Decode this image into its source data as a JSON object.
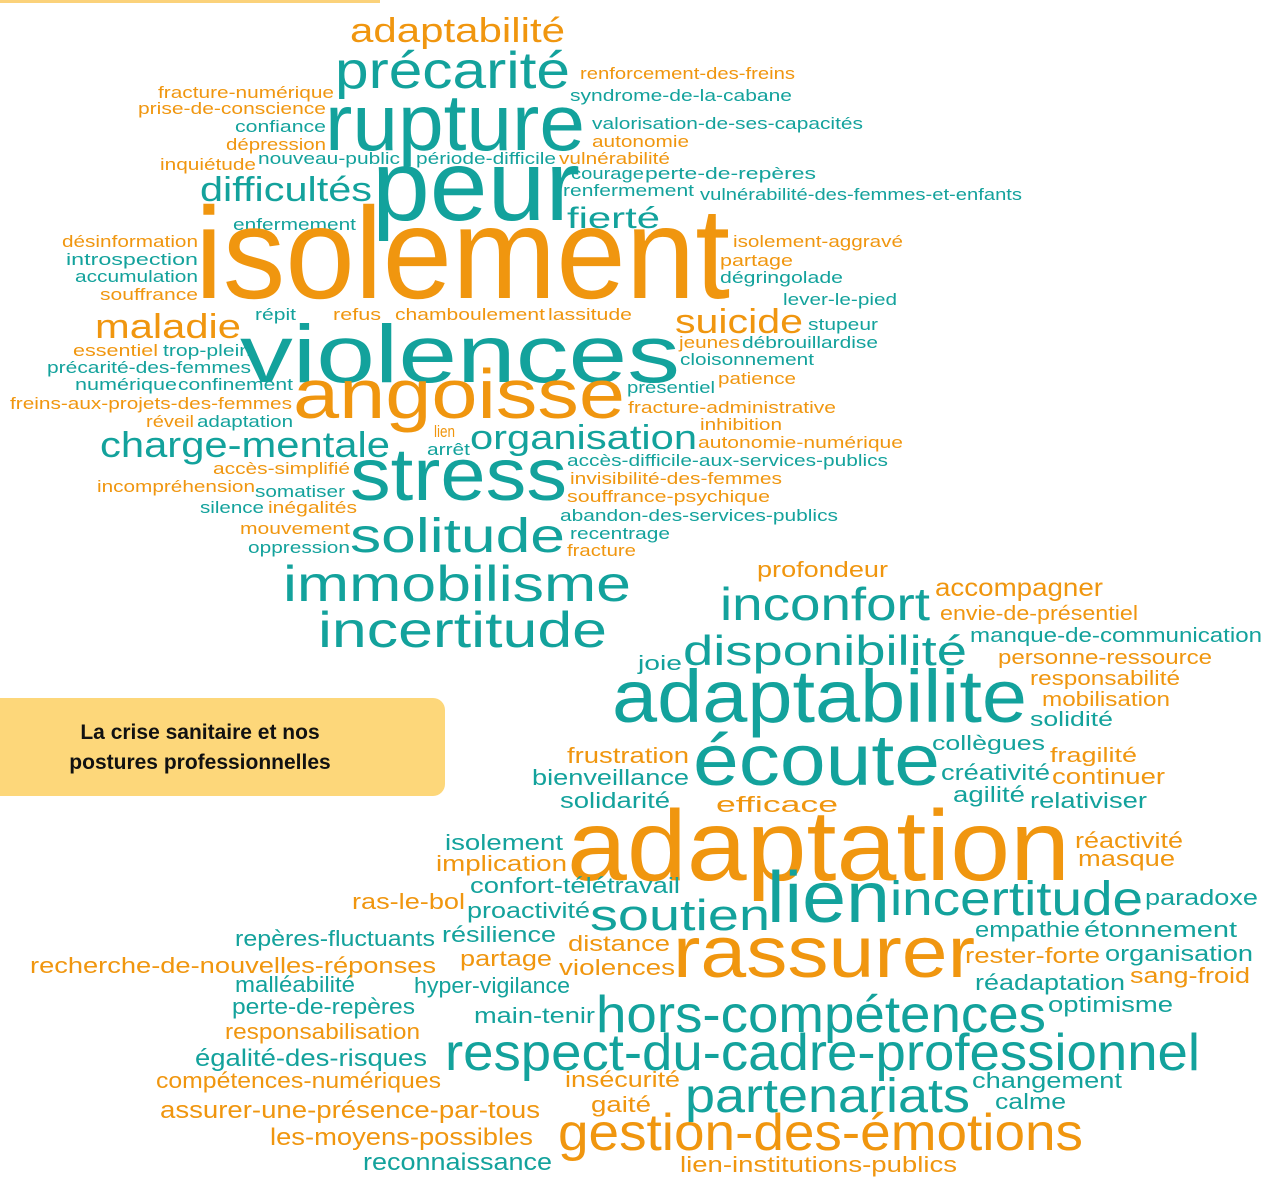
{
  "label": [
    "La crise sanitaire et nos",
    "postures professionnelles"
  ],
  "words": [
    {
      "text": "adaptabilité",
      "color": "#f0960f"
    },
    {
      "text": "précarité",
      "color": "#13a29c"
    },
    {
      "text": "fracture-numérique",
      "color": "#f0960f"
    },
    {
      "text": "renforcement-des-freins",
      "color": "#f0960f"
    },
    {
      "text": "syndrome-de-la-cabane",
      "color": "#13a29c"
    },
    {
      "text": "prise-de-conscience",
      "color": "#f0960f"
    },
    {
      "text": "rupture",
      "color": "#13a29c"
    },
    {
      "text": "confiance",
      "color": "#13a29c"
    },
    {
      "text": "valorisation-de-ses-capacités",
      "color": "#13a29c"
    },
    {
      "text": "dépression",
      "color": "#f0960f"
    },
    {
      "text": "autonomie",
      "color": "#f0960f"
    },
    {
      "text": "inquiétude",
      "color": "#f0960f"
    },
    {
      "text": "nouveau-public",
      "color": "#13a29c"
    },
    {
      "text": "période-difficile",
      "color": "#13a29c"
    },
    {
      "text": "vulnérabilité",
      "color": "#f0960f"
    },
    {
      "text": "courage",
      "color": "#13a29c"
    },
    {
      "text": "perte-de-repères",
      "color": "#13a29c"
    },
    {
      "text": "difficultés",
      "color": "#13a29c"
    },
    {
      "text": "peur",
      "color": "#13a29c"
    },
    {
      "text": "renfermement",
      "color": "#13a29c"
    },
    {
      "text": "vulnérabilité-des-femmes-et-enfants",
      "color": "#13a29c"
    },
    {
      "text": "fierté",
      "color": "#13a29c"
    },
    {
      "text": "enfermement",
      "color": "#13a29c"
    },
    {
      "text": "isolement",
      "color": "#f0960f"
    },
    {
      "text": "désinformation",
      "color": "#f0960f"
    },
    {
      "text": "isolement-aggravé",
      "color": "#f0960f"
    },
    {
      "text": "introspection",
      "color": "#13a29c"
    },
    {
      "text": "partage",
      "color": "#f0960f"
    },
    {
      "text": "accumulation",
      "color": "#13a29c"
    },
    {
      "text": "dégringolade",
      "color": "#13a29c"
    },
    {
      "text": "souffrance",
      "color": "#f0960f"
    },
    {
      "text": "lever-le-pied",
      "color": "#13a29c"
    },
    {
      "text": "répit",
      "color": "#13a29c"
    },
    {
      "text": "refus",
      "color": "#f0960f"
    },
    {
      "text": "chamboulement",
      "color": "#f0960f"
    },
    {
      "text": "lassitude",
      "color": "#f0960f"
    },
    {
      "text": "maladie",
      "color": "#f0960f"
    },
    {
      "text": "suicide",
      "color": "#f0960f"
    },
    {
      "text": "stupeur",
      "color": "#13a29c"
    },
    {
      "text": "violences",
      "color": "#13a29c"
    },
    {
      "text": "jeunes",
      "color": "#f0960f"
    },
    {
      "text": "débrouillardise",
      "color": "#13a29c"
    },
    {
      "text": "essentiel",
      "color": "#f0960f"
    },
    {
      "text": "trop-plein",
      "color": "#13a29c"
    },
    {
      "text": "cloisonnement",
      "color": "#13a29c"
    },
    {
      "text": "précarité-des-femmes",
      "color": "#13a29c"
    },
    {
      "text": "patience",
      "color": "#f0960f"
    },
    {
      "text": "numérique",
      "color": "#13a29c"
    },
    {
      "text": "confinement",
      "color": "#13a29c"
    },
    {
      "text": "présentiel",
      "color": "#13a29c"
    },
    {
      "text": "angoisse",
      "color": "#f0960f"
    },
    {
      "text": "freins-aux-projets-des-femmes",
      "color": "#f0960f"
    },
    {
      "text": "fracture-administrative",
      "color": "#f0960f"
    },
    {
      "text": "réveil",
      "color": "#f0960f"
    },
    {
      "text": "adaptation",
      "color": "#13a29c"
    },
    {
      "text": "inhibition",
      "color": "#f0960f"
    },
    {
      "text": "lien",
      "color": "#f0960f"
    },
    {
      "text": "charge-mentale",
      "color": "#13a29c"
    },
    {
      "text": "organisation",
      "color": "#13a29c"
    },
    {
      "text": "arrêt",
      "color": "#13a29c"
    },
    {
      "text": "autonomie-numérique",
      "color": "#f0960f"
    },
    {
      "text": "accès-simplifié",
      "color": "#f0960f"
    },
    {
      "text": "stress",
      "color": "#13a29c"
    },
    {
      "text": "accès-difficile-aux-services-publics",
      "color": "#13a29c"
    },
    {
      "text": "invisibilité-des-femmes",
      "color": "#f0960f"
    },
    {
      "text": "incompréhension",
      "color": "#f0960f"
    },
    {
      "text": "somatiser",
      "color": "#13a29c"
    },
    {
      "text": "souffrance-psychique",
      "color": "#f0960f"
    },
    {
      "text": "silence",
      "color": "#13a29c"
    },
    {
      "text": "inégalités",
      "color": "#f0960f"
    },
    {
      "text": "abandon-des-services-publics",
      "color": "#13a29c"
    },
    {
      "text": "mouvement",
      "color": "#f0960f"
    },
    {
      "text": "solitude",
      "color": "#13a29c"
    },
    {
      "text": "recentrage",
      "color": "#13a29c"
    },
    {
      "text": "oppression",
      "color": "#13a29c"
    },
    {
      "text": "fracture",
      "color": "#f0960f"
    },
    {
      "text": "immobilisme",
      "color": "#13a29c"
    },
    {
      "text": "incertitude",
      "color": "#13a29c"
    },
    {
      "text": "profondeur",
      "color": "#f0960f"
    },
    {
      "text": "accompagner",
      "color": "#f0960f"
    },
    {
      "text": "inconfort",
      "color": "#13a29c"
    },
    {
      "text": "envie-de-présentiel",
      "color": "#f0960f"
    },
    {
      "text": "manque-de-communication",
      "color": "#13a29c"
    },
    {
      "text": "disponibilité",
      "color": "#13a29c"
    },
    {
      "text": "joie",
      "color": "#13a29c"
    },
    {
      "text": "personne-ressource",
      "color": "#f0960f"
    },
    {
      "text": "responsabilité",
      "color": "#f0960f"
    },
    {
      "text": "adaptabilite",
      "color": "#13a29c"
    },
    {
      "text": "mobilisation",
      "color": "#f0960f"
    },
    {
      "text": "solidité",
      "color": "#13a29c"
    },
    {
      "text": "collègues",
      "color": "#13a29c"
    },
    {
      "text": "frustration",
      "color": "#f0960f"
    },
    {
      "text": "écoute",
      "color": "#13a29c"
    },
    {
      "text": "fragilité",
      "color": "#f0960f"
    },
    {
      "text": "bienveillance",
      "color": "#13a29c"
    },
    {
      "text": "créativité",
      "color": "#13a29c"
    },
    {
      "text": "continuer",
      "color": "#f0960f"
    },
    {
      "text": "agilité",
      "color": "#13a29c"
    },
    {
      "text": "relativiser",
      "color": "#13a29c"
    },
    {
      "text": "solidarité",
      "color": "#13a29c"
    },
    {
      "text": "efficace",
      "color": "#f0960f"
    },
    {
      "text": "isolement",
      "color": "#13a29c"
    },
    {
      "text": "adaptation",
      "color": "#f0960f"
    },
    {
      "text": "réactivité",
      "color": "#f0960f"
    },
    {
      "text": "masque",
      "color": "#f0960f"
    },
    {
      "text": "implication",
      "color": "#f0960f"
    },
    {
      "text": "confort-télétravail",
      "color": "#13a29c"
    },
    {
      "text": "ras-le-bol",
      "color": "#f0960f"
    },
    {
      "text": "proactivité",
      "color": "#13a29c"
    },
    {
      "text": "soutien",
      "color": "#13a29c"
    },
    {
      "text": "lien",
      "color": "#13a29c"
    },
    {
      "text": "incertitude",
      "color": "#13a29c"
    },
    {
      "text": "paradoxe",
      "color": "#13a29c"
    },
    {
      "text": "repères-fluctuants",
      "color": "#13a29c"
    },
    {
      "text": "résilience",
      "color": "#13a29c"
    },
    {
      "text": "distance",
      "color": "#f0960f"
    },
    {
      "text": "empathie",
      "color": "#13a29c"
    },
    {
      "text": "étonnement",
      "color": "#13a29c"
    },
    {
      "text": "rassurer",
      "color": "#f0960f"
    },
    {
      "text": "recherche-de-nouvelles-réponses",
      "color": "#f0960f"
    },
    {
      "text": "partage",
      "color": "#f0960f"
    },
    {
      "text": "violences",
      "color": "#f0960f"
    },
    {
      "text": "rester-forte",
      "color": "#f0960f"
    },
    {
      "text": "organisation",
      "color": "#13a29c"
    },
    {
      "text": "malléabilité",
      "color": "#13a29c"
    },
    {
      "text": "hyper-vigilance",
      "color": "#13a29c"
    },
    {
      "text": "réadaptation",
      "color": "#13a29c"
    },
    {
      "text": "sang-froid",
      "color": "#f0960f"
    },
    {
      "text": "perte-de-repères",
      "color": "#13a29c"
    },
    {
      "text": "main-tenir",
      "color": "#13a29c"
    },
    {
      "text": "hors-compétences",
      "color": "#13a29c"
    },
    {
      "text": "optimisme",
      "color": "#13a29c"
    },
    {
      "text": "responsabilisation",
      "color": "#f0960f"
    },
    {
      "text": "égalité-des-risques",
      "color": "#13a29c"
    },
    {
      "text": "respect-du-cadre-professionnel",
      "color": "#13a29c"
    },
    {
      "text": "compétences-numériques",
      "color": "#f0960f"
    },
    {
      "text": "insécurité",
      "color": "#f0960f"
    },
    {
      "text": "changement",
      "color": "#13a29c"
    },
    {
      "text": "partenariats",
      "color": "#13a29c"
    },
    {
      "text": "calme",
      "color": "#13a29c"
    },
    {
      "text": "assurer-une-présence-par-tous",
      "color": "#f0960f"
    },
    {
      "text": "gaité",
      "color": "#f0960f"
    },
    {
      "text": "gestion-des-émotions",
      "color": "#f0960f"
    },
    {
      "text": "les-moyens-possibles",
      "color": "#f0960f"
    },
    {
      "text": "reconnaissance",
      "color": "#13a29c"
    },
    {
      "text": "lien-institutions-publics",
      "color": "#f0960f"
    }
  ]
}
